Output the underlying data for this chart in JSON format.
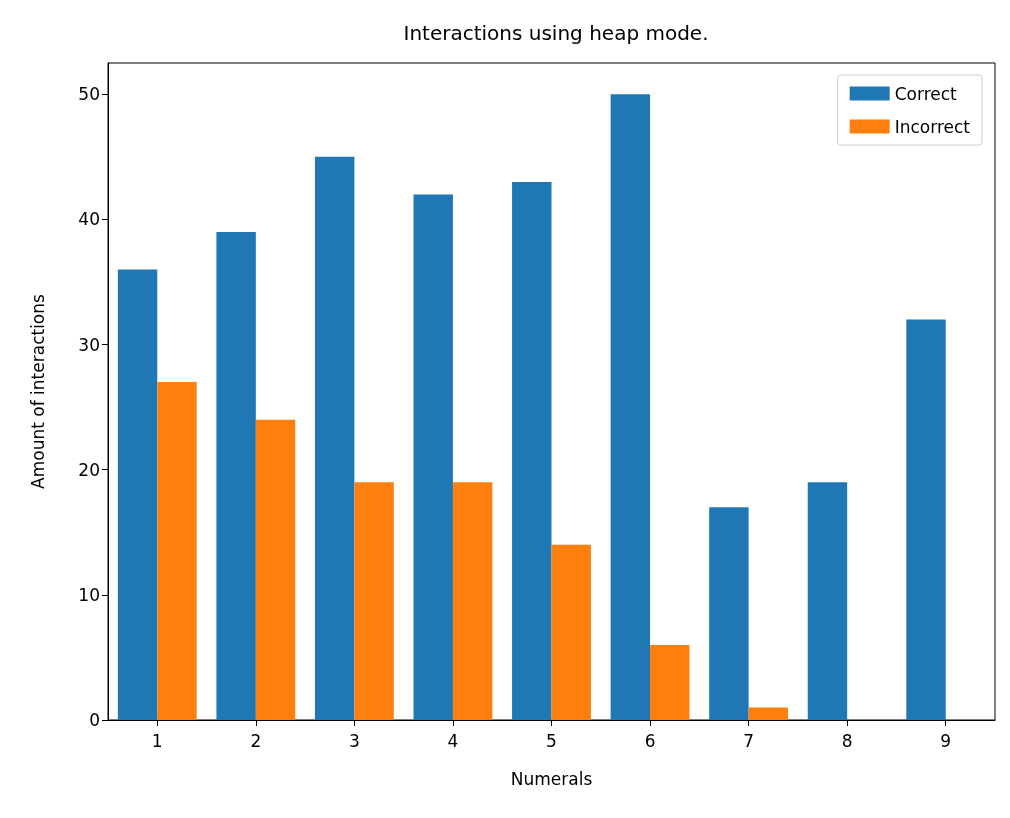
{
  "chart_data": {
    "type": "bar",
    "title": "Interactions using heap mode.",
    "xlabel": "Numerals",
    "ylabel": "Amount of interactions",
    "categories": [
      "1",
      "2",
      "3",
      "4",
      "5",
      "6",
      "7",
      "8",
      "9"
    ],
    "series": [
      {
        "name": "Correct",
        "color": "#1f77b4",
        "values": [
          36,
          39,
          45,
          42,
          43,
          50,
          17,
          19,
          32
        ]
      },
      {
        "name": "Incorrect",
        "color": "#ff7f0e",
        "values": [
          27,
          24,
          19,
          19,
          14,
          6,
          1,
          0,
          0
        ]
      }
    ],
    "ylim": [
      0,
      52.5
    ],
    "yticks": [
      0,
      10,
      20,
      30,
      40,
      50
    ],
    "grid": false,
    "legend": "top right"
  }
}
